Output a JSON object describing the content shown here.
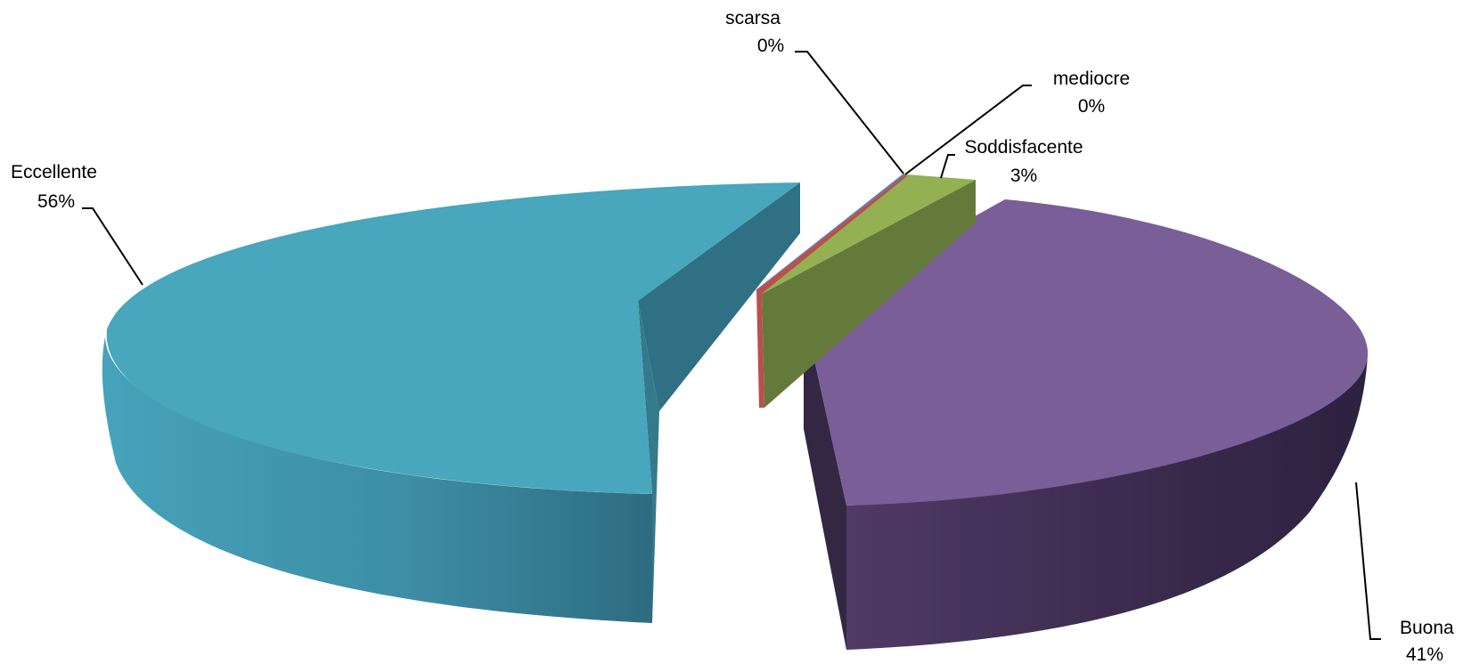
{
  "chart_data": {
    "type": "pie",
    "style": "3d-exploded",
    "title": "",
    "slices": [
      {
        "label": "Eccellente",
        "value": 56,
        "display": "56%",
        "color": "#4aa5bd"
      },
      {
        "label": "Buona",
        "value": 41,
        "display": "41%",
        "color": "#7b5e99"
      },
      {
        "label": "Soddisfacente",
        "value": 3,
        "display": "3%",
        "color": "#94b152"
      },
      {
        "label": "mediocre",
        "value": 0,
        "display": "0%",
        "color": "#b9504d"
      },
      {
        "label": "scarsa",
        "value": 0,
        "display": "0%",
        "color": "#4f7ebd"
      }
    ],
    "legend": "none"
  }
}
